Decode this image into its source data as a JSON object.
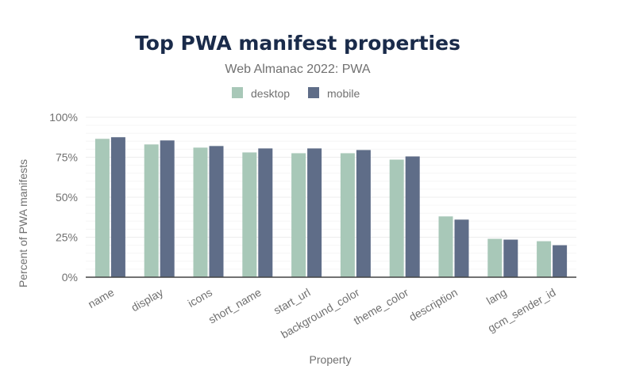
{
  "chart_data": {
    "type": "bar",
    "title": "Top PWA manifest properties",
    "subtitle": "Web Almanac 2022: PWA",
    "xlabel": "Property",
    "ylabel": "Percent of PWA manifests",
    "categories": [
      "name",
      "display",
      "icons",
      "short_name",
      "start_url",
      "background_color",
      "theme_color",
      "description",
      "lang",
      "gcm_sender_id"
    ],
    "series": [
      {
        "name": "desktop",
        "color": "#a8c8b8",
        "values": [
          86.5,
          83,
          81,
          78,
          77.5,
          77.5,
          73.5,
          38,
          24,
          22.5
        ]
      },
      {
        "name": "mobile",
        "color": "#5f6d88",
        "values": [
          87.5,
          85.5,
          82,
          80.5,
          80.5,
          79.5,
          75.5,
          36,
          23.5,
          20
        ]
      }
    ],
    "ylim": [
      0,
      100
    ],
    "yticks": [
      0,
      25,
      50,
      75,
      100
    ],
    "ytick_labels": [
      "0%",
      "25%",
      "50%",
      "75%",
      "100%"
    ],
    "grid": true,
    "legend_position": "top-center",
    "title_color": "#1a2b4a",
    "text_color": "#707070"
  }
}
